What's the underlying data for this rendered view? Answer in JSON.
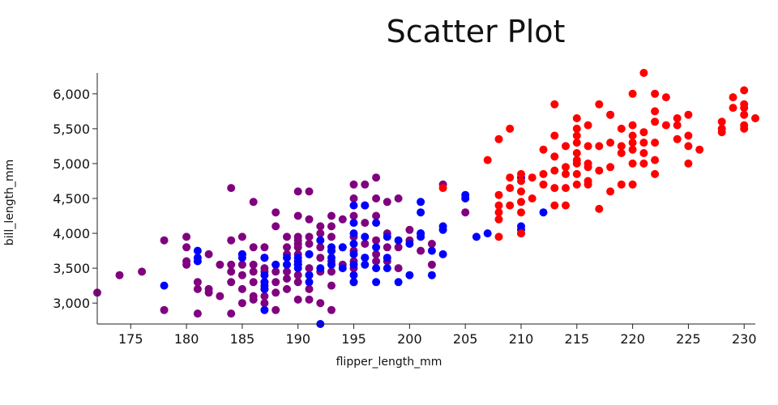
{
  "chart_data": {
    "type": "scatter",
    "title": "Scatter Plot",
    "xlabel": "flipper_length_mm",
    "ylabel": "bill_length_mm",
    "xlim": [
      172,
      231
    ],
    "ylim": [
      2700,
      6300
    ],
    "xticks": [
      175,
      180,
      185,
      190,
      195,
      200,
      205,
      210,
      215,
      220,
      225,
      230
    ],
    "yticks": [
      3000,
      3500,
      4000,
      4500,
      5000,
      5500,
      6000
    ],
    "ytick_labels": [
      "3,000",
      "3,500",
      "4,000",
      "4,500",
      "5,000",
      "5,500",
      "6,000"
    ],
    "grid": false,
    "legend": "none",
    "series": [
      {
        "color": "#800080",
        "points": [
          [
            172,
            3150
          ],
          [
            174,
            3400
          ],
          [
            176,
            3450
          ],
          [
            178,
            3900
          ],
          [
            178,
            2900
          ],
          [
            180,
            3950
          ],
          [
            180,
            3800
          ],
          [
            180,
            3600
          ],
          [
            180,
            3550
          ],
          [
            181,
            3300
          ],
          [
            181,
            3200
          ],
          [
            181,
            2850
          ],
          [
            182,
            3200
          ],
          [
            182,
            3150
          ],
          [
            182,
            3700
          ],
          [
            183,
            3550
          ],
          [
            183,
            3100
          ],
          [
            184,
            4650
          ],
          [
            184,
            3900
          ],
          [
            184,
            3550
          ],
          [
            184,
            3450
          ],
          [
            184,
            3300
          ],
          [
            184,
            2850
          ],
          [
            185,
            3950
          ],
          [
            185,
            3700
          ],
          [
            185,
            3550
          ],
          [
            185,
            3400
          ],
          [
            185,
            3200
          ],
          [
            185,
            3000
          ],
          [
            186,
            4450
          ],
          [
            186,
            3800
          ],
          [
            186,
            3550
          ],
          [
            186,
            3450
          ],
          [
            186,
            3300
          ],
          [
            186,
            3100
          ],
          [
            186,
            3050
          ],
          [
            187,
            3800
          ],
          [
            187,
            3650
          ],
          [
            187,
            3500
          ],
          [
            187,
            3450
          ],
          [
            187,
            3300
          ],
          [
            187,
            3200
          ],
          [
            187,
            3100
          ],
          [
            187,
            3000
          ],
          [
            188,
            4300
          ],
          [
            188,
            4100
          ],
          [
            188,
            3550
          ],
          [
            188,
            3450
          ],
          [
            188,
            3300
          ],
          [
            188,
            3150
          ],
          [
            188,
            2900
          ],
          [
            189,
            3950
          ],
          [
            189,
            3800
          ],
          [
            189,
            3700
          ],
          [
            189,
            3550
          ],
          [
            189,
            3450
          ],
          [
            189,
            3350
          ],
          [
            189,
            3200
          ],
          [
            190,
            4600
          ],
          [
            190,
            4250
          ],
          [
            190,
            3950
          ],
          [
            190,
            3900
          ],
          [
            190,
            3850
          ],
          [
            190,
            3800
          ],
          [
            190,
            3700
          ],
          [
            190,
            3550
          ],
          [
            190,
            3400
          ],
          [
            190,
            3300
          ],
          [
            190,
            3050
          ],
          [
            191,
            4600
          ],
          [
            191,
            4200
          ],
          [
            191,
            3950
          ],
          [
            191,
            3850
          ],
          [
            191,
            3700
          ],
          [
            191,
            3500
          ],
          [
            191,
            3400
          ],
          [
            191,
            3200
          ],
          [
            191,
            3050
          ],
          [
            192,
            4100
          ],
          [
            192,
            4000
          ],
          [
            192,
            3800
          ],
          [
            192,
            3650
          ],
          [
            192,
            3450
          ],
          [
            192,
            3000
          ],
          [
            193,
            4250
          ],
          [
            193,
            4100
          ],
          [
            193,
            3950
          ],
          [
            193,
            3750
          ],
          [
            193,
            3600
          ],
          [
            193,
            3450
          ],
          [
            193,
            3250
          ],
          [
            193,
            2900
          ],
          [
            194,
            4200
          ],
          [
            194,
            3800
          ],
          [
            194,
            3550
          ],
          [
            195,
            4700
          ],
          [
            195,
            4500
          ],
          [
            195,
            4250
          ],
          [
            195,
            3950
          ],
          [
            195,
            3750
          ],
          [
            195,
            3600
          ],
          [
            195,
            3500
          ],
          [
            195,
            3300
          ],
          [
            196,
            4700
          ],
          [
            196,
            4400
          ],
          [
            196,
            4150
          ],
          [
            196,
            3850
          ],
          [
            196,
            3650
          ],
          [
            197,
            4800
          ],
          [
            197,
            4500
          ],
          [
            197,
            4250
          ],
          [
            197,
            3900
          ],
          [
            197,
            3700
          ],
          [
            197,
            3600
          ],
          [
            198,
            4450
          ],
          [
            198,
            4000
          ],
          [
            198,
            3800
          ],
          [
            198,
            3600
          ],
          [
            199,
            4500
          ],
          [
            199,
            3800
          ],
          [
            199,
            3500
          ],
          [
            200,
            4050
          ],
          [
            200,
            3900
          ],
          [
            201,
            4000
          ],
          [
            201,
            3750
          ],
          [
            202,
            3850
          ],
          [
            202,
            3550
          ],
          [
            203,
            4700
          ],
          [
            205,
            4300
          ]
        ]
      },
      {
        "color": "#0000ff",
        "points": [
          [
            178,
            3250
          ],
          [
            181,
            3750
          ],
          [
            181,
            3650
          ],
          [
            181,
            3600
          ],
          [
            185,
            3700
          ],
          [
            185,
            3650
          ],
          [
            187,
            3650
          ],
          [
            187,
            3400
          ],
          [
            187,
            3300
          ],
          [
            187,
            3250
          ],
          [
            187,
            3200
          ],
          [
            187,
            2900
          ],
          [
            188,
            3550
          ],
          [
            189,
            3650
          ],
          [
            189,
            3550
          ],
          [
            190,
            3650
          ],
          [
            190,
            3600
          ],
          [
            190,
            3550
          ],
          [
            190,
            3500
          ],
          [
            191,
            3700
          ],
          [
            191,
            3400
          ],
          [
            191,
            3300
          ],
          [
            192,
            3900
          ],
          [
            192,
            3500
          ],
          [
            192,
            2700
          ],
          [
            193,
            3800
          ],
          [
            193,
            3750
          ],
          [
            193,
            3650
          ],
          [
            193,
            3550
          ],
          [
            194,
            3800
          ],
          [
            194,
            3500
          ],
          [
            195,
            4400
          ],
          [
            195,
            4150
          ],
          [
            195,
            4000
          ],
          [
            195,
            3850
          ],
          [
            195,
            3700
          ],
          [
            195,
            3550
          ],
          [
            195,
            3400
          ],
          [
            195,
            3300
          ],
          [
            196,
            4400
          ],
          [
            196,
            3950
          ],
          [
            196,
            3650
          ],
          [
            196,
            3550
          ],
          [
            197,
            4150
          ],
          [
            197,
            3800
          ],
          [
            197,
            3500
          ],
          [
            197,
            3300
          ],
          [
            198,
            3950
          ],
          [
            198,
            3650
          ],
          [
            198,
            3500
          ],
          [
            199,
            3900
          ],
          [
            199,
            3300
          ],
          [
            200,
            3850
          ],
          [
            200,
            3400
          ],
          [
            201,
            4450
          ],
          [
            201,
            4300
          ],
          [
            201,
            4000
          ],
          [
            201,
            3950
          ],
          [
            202,
            3750
          ],
          [
            202,
            3400
          ],
          [
            203,
            4100
          ],
          [
            203,
            4050
          ],
          [
            203,
            3700
          ],
          [
            205,
            4550
          ],
          [
            205,
            4500
          ],
          [
            206,
            3950
          ],
          [
            207,
            4000
          ],
          [
            210,
            4050
          ],
          [
            210,
            4000
          ],
          [
            210,
            4100
          ],
          [
            210,
            4800
          ],
          [
            212,
            4300
          ]
        ]
      },
      {
        "color": "#ff0000",
        "points": [
          [
            203,
            4650
          ],
          [
            207,
            5050
          ],
          [
            208,
            3950
          ],
          [
            208,
            4200
          ],
          [
            208,
            4300
          ],
          [
            208,
            4400
          ],
          [
            208,
            4550
          ],
          [
            208,
            5350
          ],
          [
            209,
            4400
          ],
          [
            209,
            4650
          ],
          [
            209,
            4800
          ],
          [
            209,
            5500
          ],
          [
            210,
            4000
          ],
          [
            210,
            4300
          ],
          [
            210,
            4450
          ],
          [
            210,
            4600
          ],
          [
            210,
            4750
          ],
          [
            210,
            4850
          ],
          [
            211,
            4500
          ],
          [
            211,
            4800
          ],
          [
            212,
            4700
          ],
          [
            212,
            4850
          ],
          [
            212,
            5200
          ],
          [
            213,
            4400
          ],
          [
            213,
            4650
          ],
          [
            213,
            4900
          ],
          [
            213,
            5100
          ],
          [
            213,
            5400
          ],
          [
            213,
            5850
          ],
          [
            214,
            4400
          ],
          [
            214,
            4650
          ],
          [
            214,
            4850
          ],
          [
            214,
            4950
          ],
          [
            214,
            5250
          ],
          [
            215,
            4700
          ],
          [
            215,
            4850
          ],
          [
            215,
            5000
          ],
          [
            215,
            5050
          ],
          [
            215,
            5150
          ],
          [
            215,
            5300
          ],
          [
            215,
            5400
          ],
          [
            215,
            5500
          ],
          [
            215,
            5650
          ],
          [
            216,
            4700
          ],
          [
            216,
            4750
          ],
          [
            216,
            4950
          ],
          [
            216,
            5000
          ],
          [
            216,
            5250
          ],
          [
            216,
            5550
          ],
          [
            217,
            4350
          ],
          [
            217,
            4900
          ],
          [
            217,
            5250
          ],
          [
            217,
            5850
          ],
          [
            218,
            4600
          ],
          [
            218,
            4950
          ],
          [
            218,
            5300
          ],
          [
            218,
            5700
          ],
          [
            218,
            5700
          ],
          [
            219,
            4700
          ],
          [
            219,
            5150
          ],
          [
            219,
            5250
          ],
          [
            219,
            5500
          ],
          [
            220,
            4700
          ],
          [
            220,
            5000
          ],
          [
            220,
            5200
          ],
          [
            220,
            5300
          ],
          [
            220,
            5400
          ],
          [
            220,
            5550
          ],
          [
            220,
            6000
          ],
          [
            221,
            5000
          ],
          [
            221,
            5150
          ],
          [
            221,
            5300
          ],
          [
            221,
            5450
          ],
          [
            221,
            6300
          ],
          [
            222,
            4850
          ],
          [
            222,
            5050
          ],
          [
            222,
            5300
          ],
          [
            222,
            5600
          ],
          [
            222,
            5750
          ],
          [
            222,
            6000
          ],
          [
            223,
            5550
          ],
          [
            223,
            5950
          ],
          [
            224,
            5350
          ],
          [
            224,
            5550
          ],
          [
            224,
            5650
          ],
          [
            225,
            5000
          ],
          [
            225,
            5250
          ],
          [
            225,
            5400
          ],
          [
            225,
            5700
          ],
          [
            226,
            5200
          ],
          [
            228,
            5450
          ],
          [
            228,
            5500
          ],
          [
            228,
            5600
          ],
          [
            229,
            5800
          ],
          [
            229,
            5950
          ],
          [
            230,
            5500
          ],
          [
            230,
            5550
          ],
          [
            230,
            5700
          ],
          [
            230,
            5800
          ],
          [
            230,
            5850
          ],
          [
            230,
            6050
          ],
          [
            231,
            5650
          ]
        ]
      }
    ]
  }
}
